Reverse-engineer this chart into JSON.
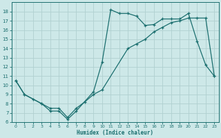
{
  "xlabel": "Humidex (Indice chaleur)",
  "background_color": "#cde8e8",
  "grid_color": "#b0d0d0",
  "line_color": "#1a6e6e",
  "curve1_x": [
    0,
    1,
    3,
    4,
    5,
    6,
    7,
    9,
    10,
    11,
    12,
    13,
    14,
    15,
    16,
    17,
    18,
    19,
    20,
    21,
    22,
    23
  ],
  "curve1_y": [
    10.5,
    9.0,
    8.0,
    7.2,
    7.2,
    6.3,
    7.2,
    9.3,
    12.5,
    18.2,
    17.8,
    17.8,
    17.5,
    16.5,
    16.6,
    17.2,
    17.2,
    17.2,
    17.8,
    14.8,
    12.2,
    11.0
  ],
  "curve2_x": [
    0,
    1,
    2,
    3,
    4,
    5,
    6,
    7,
    8,
    9,
    10,
    13,
    14,
    15,
    16,
    17,
    18,
    19,
    20,
    21,
    22,
    23
  ],
  "curve2_y": [
    10.5,
    9.0,
    8.5,
    8.0,
    7.5,
    7.5,
    6.5,
    7.5,
    8.2,
    9.0,
    9.5,
    14.0,
    14.5,
    15.0,
    15.8,
    16.3,
    16.8,
    17.0,
    17.3,
    17.3,
    17.3,
    11.0
  ],
  "ylim": [
    6,
    19
  ],
  "xlim": [
    -0.5,
    23.5
  ],
  "yticks": [
    6,
    7,
    8,
    9,
    10,
    11,
    12,
    13,
    14,
    15,
    16,
    17,
    18
  ],
  "xticks": [
    0,
    1,
    2,
    3,
    4,
    5,
    6,
    7,
    8,
    9,
    10,
    11,
    12,
    13,
    14,
    15,
    16,
    17,
    18,
    19,
    20,
    21,
    22,
    23
  ]
}
